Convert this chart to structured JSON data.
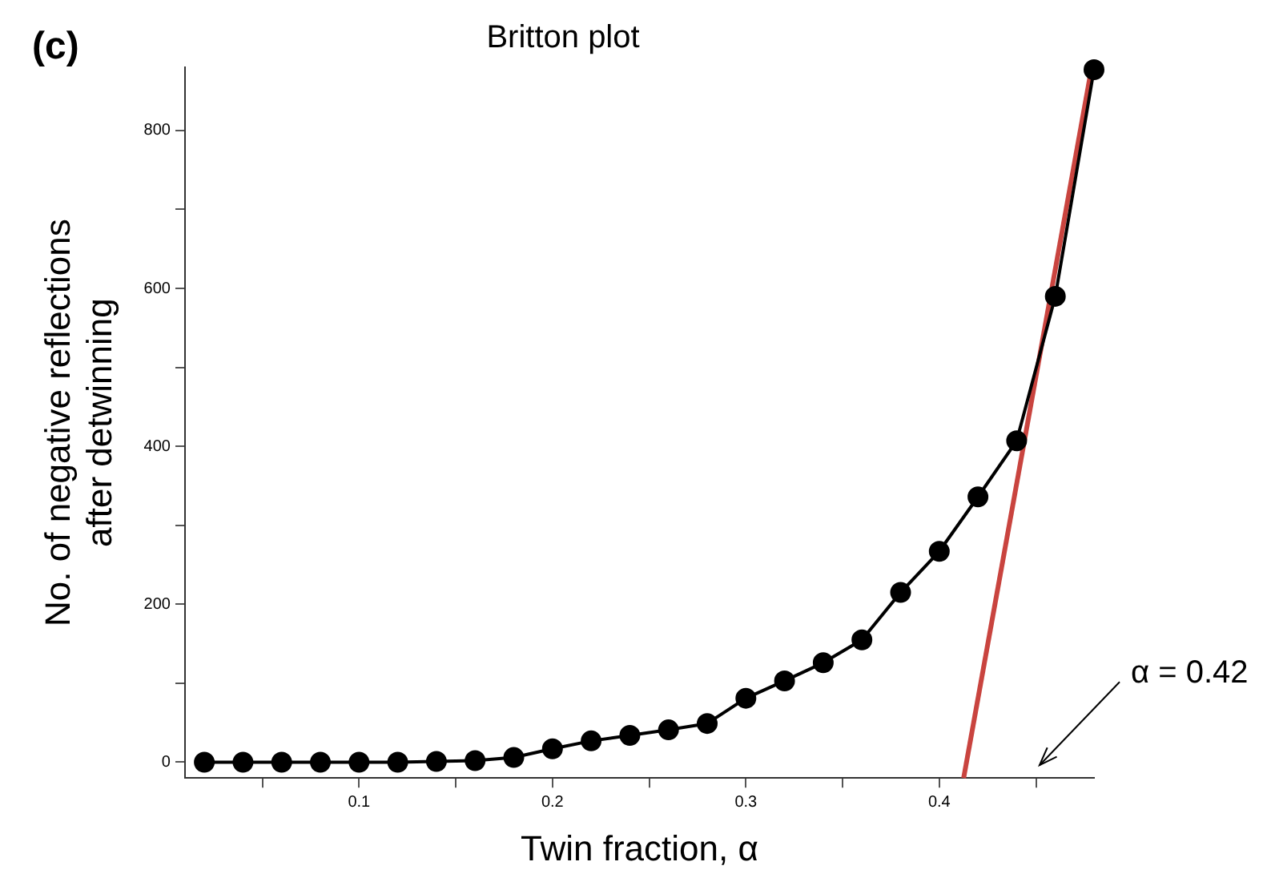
{
  "chart_data": {
    "type": "line",
    "title": "Britton plot",
    "xlabel": "Twin fraction, α",
    "ylabel": "No. of negative reflections\nafter detwinning",
    "x": [
      0.02,
      0.04,
      0.06,
      0.08,
      0.1,
      0.12,
      0.14,
      0.16,
      0.18,
      0.2,
      0.22,
      0.24,
      0.26,
      0.28,
      0.3,
      0.32,
      0.34,
      0.36,
      0.38,
      0.4,
      0.42,
      0.44,
      0.46,
      0.48
    ],
    "series": [
      {
        "type": "line",
        "color": "#000000",
        "marker": "circle",
        "values": [
          0,
          0,
          0,
          0,
          0,
          0,
          1,
          2,
          6,
          17,
          27,
          34,
          41,
          49,
          81,
          103,
          126,
          155,
          215,
          267,
          336,
          407,
          590,
          877
        ]
      },
      {
        "type": "line",
        "color": "#c9443f",
        "marker": "none",
        "x": [
          0.4126,
          0.4788
        ],
        "values": [
          -20,
          880
        ]
      }
    ],
    "xlim": [
      0.01,
      0.48
    ],
    "ylim": [
      -20,
      880
    ],
    "xticks": [
      {
        "value": 0.05,
        "label": null
      },
      0.1,
      {
        "value": 0.15,
        "label": null
      },
      0.2,
      {
        "value": 0.25,
        "label": null
      },
      0.3,
      {
        "value": 0.35,
        "label": null
      },
      0.4,
      {
        "value": 0.45,
        "label": null
      }
    ],
    "yticks": [
      0,
      {
        "value": 100,
        "label": null
      },
      200,
      {
        "value": 300,
        "label": null
      },
      400,
      {
        "value": 500,
        "label": null
      },
      600,
      {
        "value": 700,
        "label": null
      },
      800
    ],
    "grid": false,
    "legend": false,
    "annotations": [
      "(c)",
      "α = 0.42"
    ]
  }
}
